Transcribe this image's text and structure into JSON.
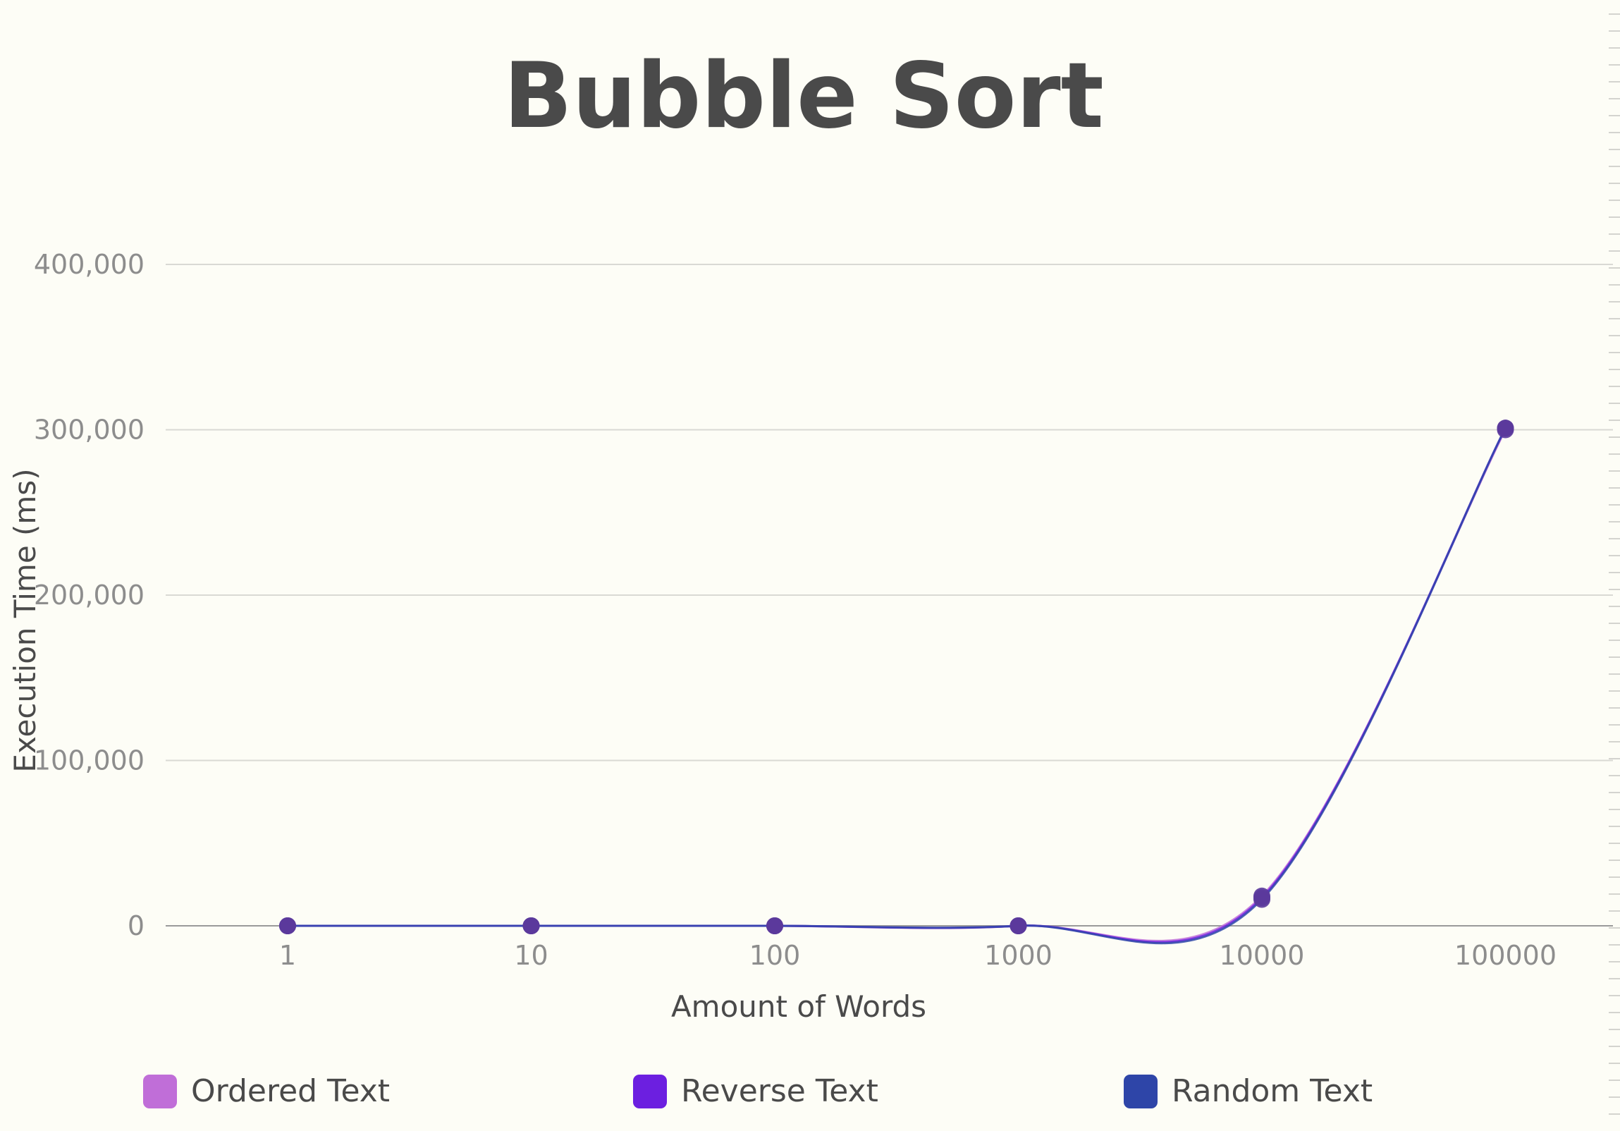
{
  "chart_data": {
    "type": "line",
    "title": "Bubble Sort",
    "xlabel": "Amount of Words",
    "ylabel": "Execution Time (ms)",
    "categories": [
      "1",
      "10",
      "100",
      "1000",
      "10000",
      "100000"
    ],
    "y_ticks": [
      "0",
      "100,000",
      "200,000",
      "300,000",
      "400,000"
    ],
    "ylim": [
      0,
      400000
    ],
    "grid": true,
    "legend_position": "bottom",
    "series": [
      {
        "name": "Ordered Text",
        "color": "#c06ed8",
        "values": [
          0,
          0,
          0,
          0,
          18000,
          300000
        ]
      },
      {
        "name": "Reverse Text",
        "color": "#6c1fe0",
        "values": [
          0,
          0,
          0,
          0,
          17000,
          301000
        ]
      },
      {
        "name": "Random Text",
        "color": "#2e45a8",
        "values": [
          0,
          0,
          0,
          0,
          16000,
          301000
        ]
      }
    ],
    "marker_color": "#5b3a9c"
  }
}
